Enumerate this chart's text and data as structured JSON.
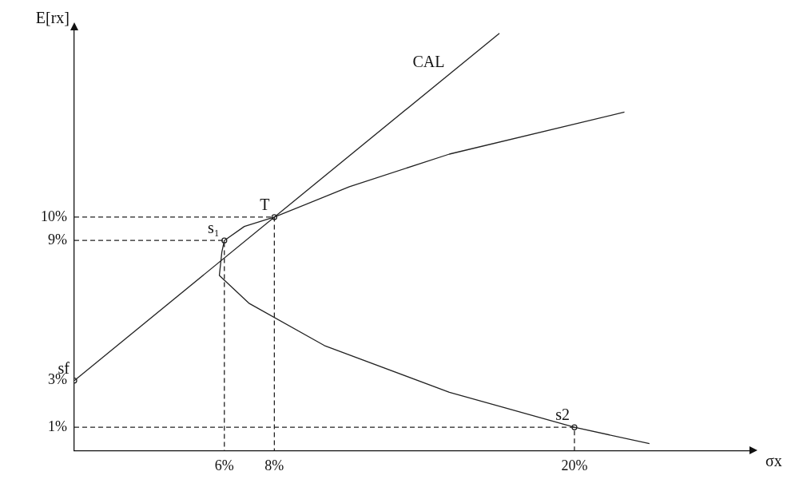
{
  "chart_data": {
    "type": "line",
    "xlabel": "σx",
    "ylabel": "E[rx]",
    "xlim": [
      0,
      27
    ],
    "ylim": [
      0,
      18
    ],
    "xticks": [
      {
        "value": 6,
        "label": "6%"
      },
      {
        "value": 8,
        "label": "8%"
      },
      {
        "value": 20,
        "label": "20%"
      }
    ],
    "yticks": [
      {
        "value": 1,
        "label": "1%"
      },
      {
        "value": 3,
        "label": "3%"
      },
      {
        "value": 9,
        "label": "9%"
      },
      {
        "value": 10,
        "label": "10%"
      }
    ],
    "grid": false,
    "legend": false,
    "marker": "none",
    "line_style": "solid",
    "series": [
      {
        "type": "line",
        "color": "#222222",
        "x": [
          0,
          17
        ],
        "values": [
          3,
          17.875
        ]
      },
      {
        "type": "line",
        "color": "#222222",
        "x": [
          23,
          20,
          15,
          10,
          7,
          5.8,
          5.9,
          6,
          6.8,
          8,
          11,
          15,
          22
        ],
        "values": [
          0.3,
          1,
          2.5,
          4.5,
          6.3,
          7.5,
          8.5,
          9,
          9.6,
          10,
          11.3,
          12.7,
          14.5
        ]
      },
      {
        "type": "line",
        "color": "#222222",
        "line_style": "dashed",
        "x": [
          0,
          6,
          6
        ],
        "values": [
          9,
          9,
          0
        ]
      },
      {
        "type": "line",
        "color": "#222222",
        "line_style": "dashed",
        "x": [
          0,
          8,
          8
        ],
        "values": [
          10,
          10,
          0
        ]
      },
      {
        "type": "line",
        "color": "#222222",
        "line_style": "dashed",
        "x": [
          0,
          20,
          20
        ],
        "values": [
          1,
          1,
          0
        ]
      },
      {
        "type": "scatter",
        "color": "#222222",
        "marker": "circle",
        "x": [
          0,
          6,
          8,
          20
        ],
        "values": [
          3,
          9,
          10,
          1
        ]
      }
    ],
    "annotations": [
      {
        "text": "CAL",
        "x": 15,
        "y": 16.125
      },
      {
        "text": "T",
        "x": 8,
        "y": 10
      },
      {
        "text": "s₁",
        "x": 6,
        "y": 9
      },
      {
        "text": "sf",
        "x": 0,
        "y": 3
      },
      {
        "text": "s2",
        "x": 20,
        "y": 1
      }
    ]
  }
}
